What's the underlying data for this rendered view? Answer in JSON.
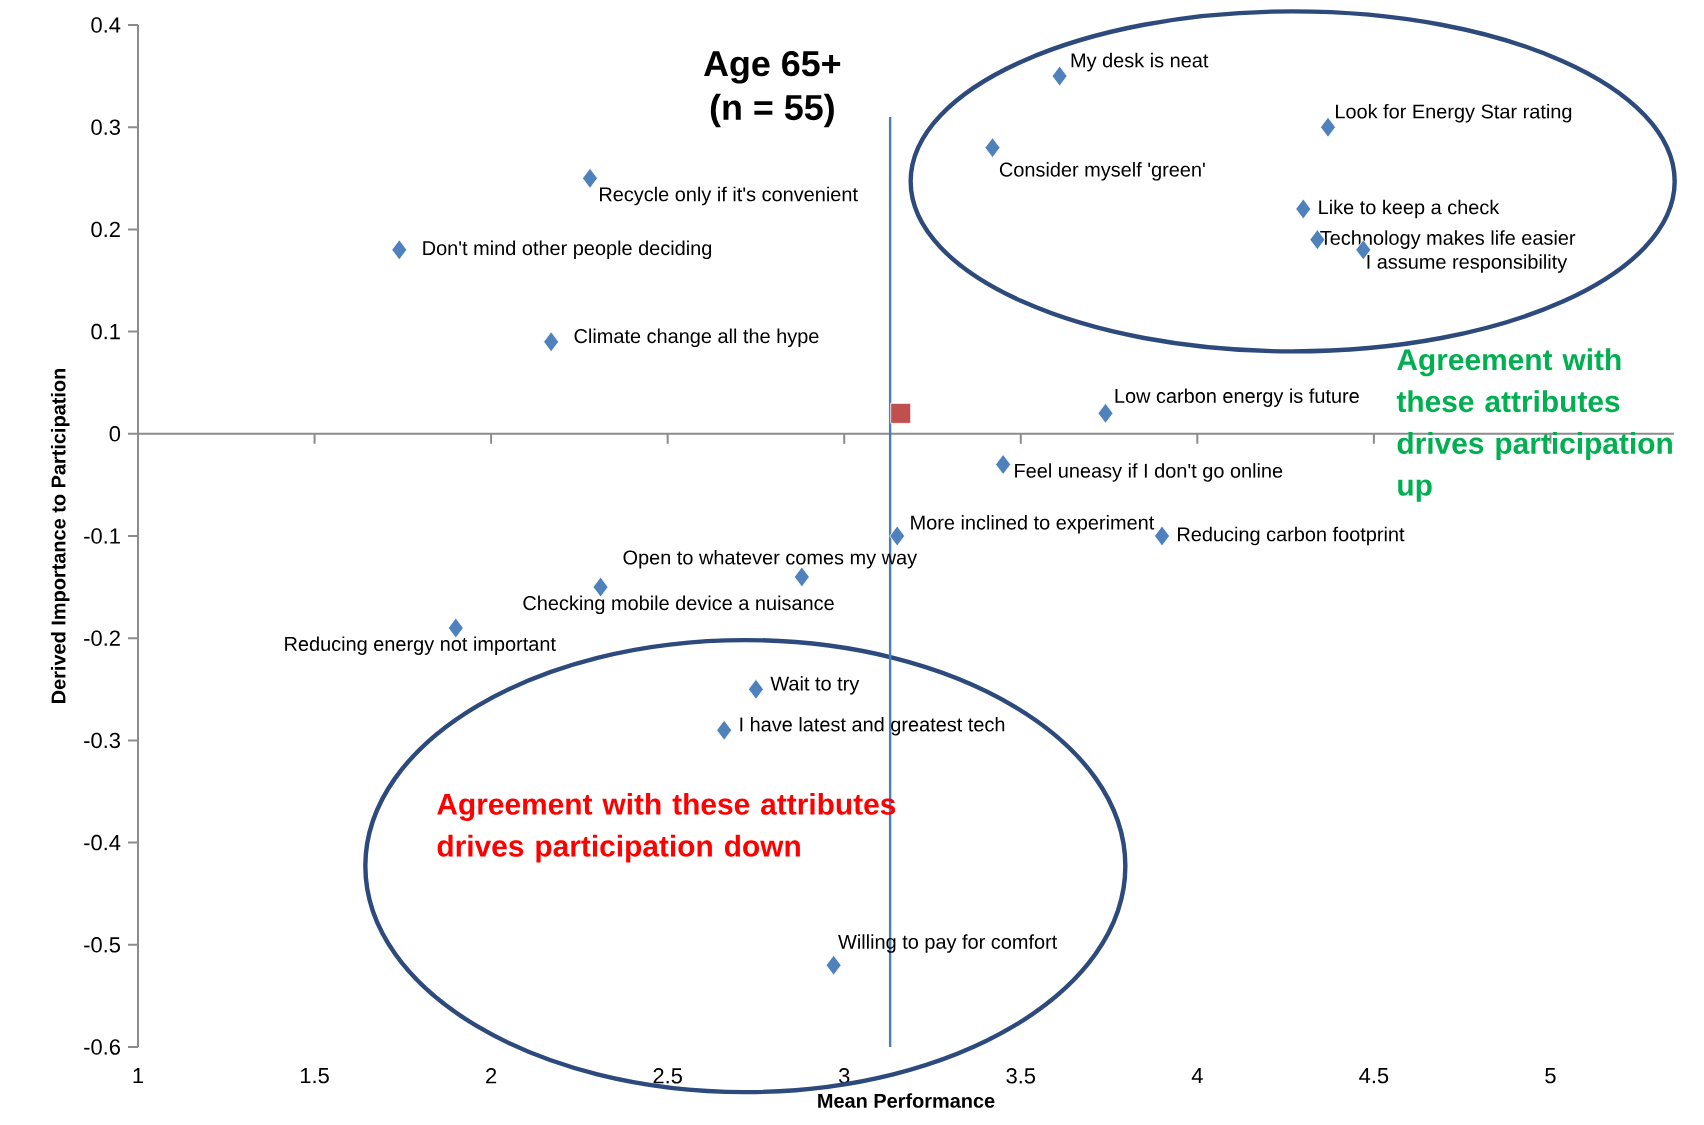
{
  "chart_data": {
    "type": "scatter",
    "title": "Age 65+",
    "subtitle": "(n = 55)",
    "xlabel": "Mean Performance",
    "ylabel": "Derived Importance to Participation",
    "xlim": [
      1,
      5.35
    ],
    "ylim": [
      -0.6,
      0.4
    ],
    "xticks": [
      1,
      1.5,
      2,
      2.5,
      3,
      3.5,
      4,
      4.5,
      5
    ],
    "yticks": [
      -0.6,
      -0.5,
      -0.4,
      -0.3,
      -0.2,
      -0.1,
      0,
      0.1,
      0.2,
      0.3,
      0.4
    ],
    "series": [
      {
        "color": "#4f81bd",
        "marker": "diamond",
        "x": [
          3.61,
          4.37,
          3.42,
          4.3,
          4.34,
          4.47,
          2.28,
          1.74,
          2.17,
          3.74,
          3.45,
          3.15,
          3.9,
          2.88,
          2.31,
          1.9,
          2.75,
          2.66,
          2.97
        ],
        "values": [
          0.35,
          0.3,
          0.28,
          0.22,
          0.19,
          0.18,
          0.25,
          0.18,
          0.09,
          0.02,
          -0.03,
          -0.1,
          -0.1,
          -0.14,
          -0.15,
          -0.19,
          -0.25,
          -0.29,
          -0.52
        ]
      },
      {
        "color": "#c0504d",
        "marker": "square",
        "x": [
          3.16
        ],
        "values": [
          0.02
        ]
      }
    ],
    "ref_lines": [
      {
        "axis": "x",
        "value": 3.13,
        "color": "#4a7ebb"
      }
    ],
    "annotations": [
      {
        "text": "My desk is neat",
        "x": 3.61,
        "y": 0.35
      },
      {
        "text": "Look for Energy Star rating",
        "x": 4.37,
        "y": 0.3
      },
      {
        "text": "Consider myself 'green'",
        "x": 3.42,
        "y": 0.28
      },
      {
        "text": "Like to keep a check",
        "x": 4.3,
        "y": 0.22
      },
      {
        "text": "Technology makes life easier",
        "x": 4.34,
        "y": 0.19
      },
      {
        "text": "I assume responsibility",
        "x": 4.47,
        "y": 0.18
      },
      {
        "text": "Recycle only if it's convenient",
        "x": 2.28,
        "y": 0.25
      },
      {
        "text": "Don't mind other people deciding",
        "x": 1.74,
        "y": 0.18
      },
      {
        "text": "Climate change all the hype",
        "x": 2.17,
        "y": 0.09
      },
      {
        "text": "Low carbon energy is future",
        "x": 3.74,
        "y": 0.02
      },
      {
        "text": "Feel uneasy if I don't go online",
        "x": 3.45,
        "y": -0.03
      },
      {
        "text": "More inclined to experiment",
        "x": 3.15,
        "y": -0.1
      },
      {
        "text": "Reducing carbon footprint",
        "x": 3.9,
        "y": -0.1
      },
      {
        "text": "Open to whatever comes my way",
        "x": 2.88,
        "y": -0.14
      },
      {
        "text": "Checking mobile device a nuisance",
        "x": 2.31,
        "y": -0.15
      },
      {
        "text": "Reducing energy not important",
        "x": 1.9,
        "y": -0.19
      },
      {
        "text": "Wait to try",
        "x": 2.75,
        "y": -0.25
      },
      {
        "text": "I have latest and greatest tech",
        "x": 2.66,
        "y": -0.29
      },
      {
        "text": "Willing to pay for comfort",
        "x": 2.97,
        "y": -0.52
      },
      "Agreement with these attributes drives participation up",
      "Agreement with these attributes drives participation down"
    ]
  }
}
